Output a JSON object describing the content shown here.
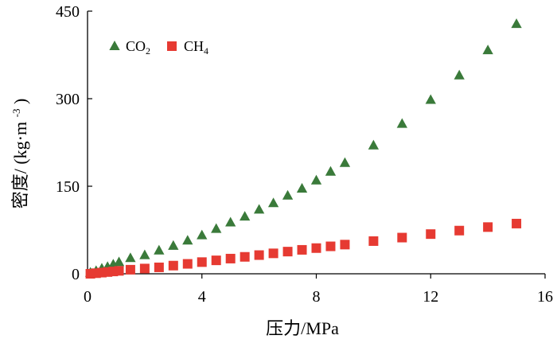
{
  "chart_data": {
    "type": "scatter",
    "title": "",
    "xlabel": "压力/MPa",
    "ylabel_main": "密度/",
    "ylabel_unit": "(kg·m",
    "ylabel_exp": "-3",
    "ylabel_close": ")",
    "xlim": [
      0,
      16
    ],
    "ylim": [
      0,
      450
    ],
    "xticks": [
      0,
      4,
      8,
      12,
      16
    ],
    "yticks": [
      0,
      150,
      300,
      450
    ],
    "xtick_labels": [
      "0",
      "4",
      "8",
      "12",
      "16"
    ],
    "ytick_labels": [
      "0",
      "150",
      "300",
      "450"
    ],
    "grid": false,
    "legend_position": "top-left",
    "series": [
      {
        "name": "CO2",
        "legend_text": "CO",
        "legend_sub": "2",
        "marker": "triangle",
        "color": "#3a7a3a",
        "x": [
          0.1,
          0.3,
          0.5,
          0.7,
          0.9,
          1.1,
          1.5,
          2.0,
          2.5,
          3.0,
          3.5,
          4.0,
          4.5,
          5.0,
          5.5,
          6.0,
          6.5,
          7.0,
          7.5,
          8.0,
          8.5,
          9.0,
          10.0,
          11.0,
          12.0,
          13.0,
          14.0,
          15.0
        ],
        "y": [
          2,
          5,
          9,
          12,
          16,
          20,
          27,
          32,
          40,
          48,
          57,
          66,
          77,
          88,
          98,
          110,
          121,
          134,
          146,
          160,
          175,
          190,
          220,
          257,
          298,
          340,
          383,
          428
        ]
      },
      {
        "name": "CH4",
        "legend_text": "CH",
        "legend_sub": "4",
        "marker": "square",
        "color": "#e63a32",
        "x": [
          0.1,
          0.3,
          0.5,
          0.7,
          0.9,
          1.1,
          1.5,
          2.0,
          2.5,
          3.0,
          3.5,
          4.0,
          4.5,
          5.0,
          5.5,
          6.0,
          6.5,
          7.0,
          7.5,
          8.0,
          8.5,
          9.0,
          10.0,
          11.0,
          12.0,
          13.0,
          14.0,
          15.0
        ],
        "y": [
          0,
          1,
          2,
          3,
          4,
          5,
          7,
          9,
          11,
          14,
          17,
          20,
          23,
          26,
          29,
          32,
          35,
          38,
          41,
          44,
          47,
          50,
          56,
          62,
          68,
          74,
          80,
          86
        ]
      }
    ]
  }
}
